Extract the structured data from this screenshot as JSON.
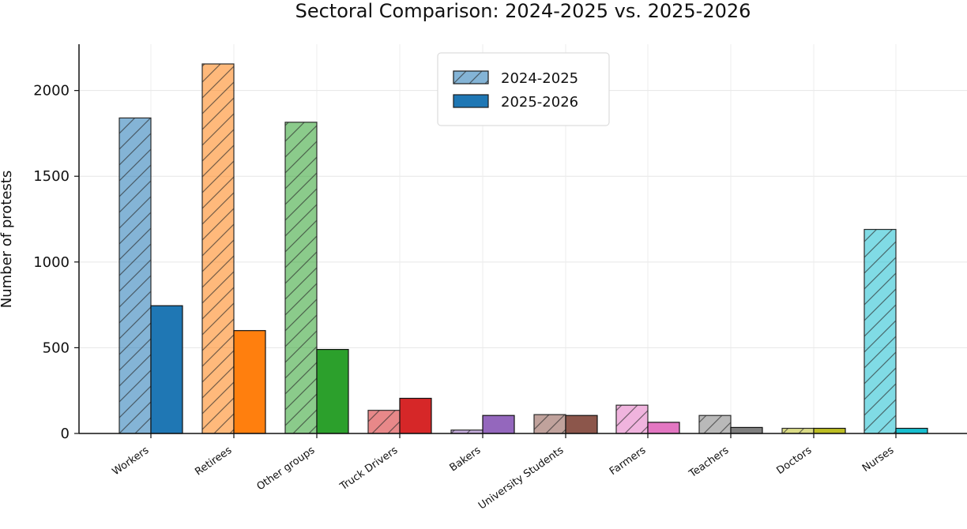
{
  "chart_data": {
    "type": "bar",
    "title": "Sectoral Comparison: 2024-2025 vs. 2025-2026",
    "xlabel": "",
    "ylabel": "Number of protests",
    "categories": [
      "Workers",
      "Retirees",
      "Other groups",
      "Truck Drivers",
      "Bakers",
      "University Students",
      "Farmers",
      "Teachers",
      "Doctors",
      "Nurses"
    ],
    "series": [
      {
        "name": "2024-2025",
        "values": [
          1840,
          2155,
          1815,
          135,
          20,
          110,
          165,
          105,
          30,
          1190
        ]
      },
      {
        "name": "2025-2026",
        "values": [
          745,
          600,
          490,
          205,
          105,
          105,
          65,
          35,
          30,
          30
        ]
      }
    ],
    "ylim": [
      0,
      2270
    ],
    "yticks": [
      0,
      500,
      1000,
      1500,
      2000
    ],
    "grid": true,
    "legend_position": "top-center",
    "colors": [
      "#1f77b4",
      "#ff7f0e",
      "#2ca02c",
      "#d62728",
      "#9467bd",
      "#8c564b",
      "#e377c2",
      "#7f7f7f",
      "#bcbd22",
      "#17becf"
    ],
    "legend_colors": {
      "2024-2025": "#1f77b4",
      "2025-2026": "#1f77b4"
    }
  }
}
